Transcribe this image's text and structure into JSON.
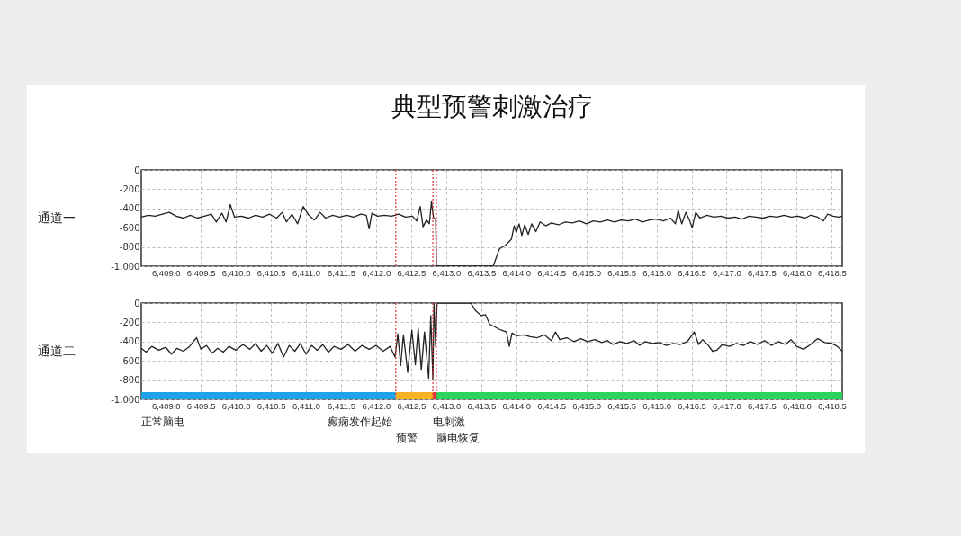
{
  "chart_data": [
    {
      "type": "line",
      "title": "典型预警刺激治疗",
      "ylabel": "通道一",
      "grid": true,
      "xlim": [
        6408.65,
        6418.65
      ],
      "ylim": [
        -1000,
        0
      ],
      "xticks": [
        {
          "value": 6409,
          "label": "6,409.0"
        },
        {
          "value": 6409.5,
          "label": "6,409.5"
        },
        {
          "value": 6410,
          "label": "6,410.0"
        },
        {
          "value": 6410.5,
          "label": "6,410.5"
        },
        {
          "value": 6411,
          "label": "6,411.0"
        },
        {
          "value": 6411.5,
          "label": "6,411.5"
        },
        {
          "value": 6412,
          "label": "6,412.0"
        },
        {
          "value": 6412.5,
          "label": "6,412.5"
        },
        {
          "value": 6413,
          "label": "6,413.0"
        },
        {
          "value": 6413.5,
          "label": "6,413.5"
        },
        {
          "value": 6414,
          "label": "6,414.0"
        },
        {
          "value": 6414.5,
          "label": "6,414.5"
        },
        {
          "value": 6415,
          "label": "6,415.0"
        },
        {
          "value": 6415.5,
          "label": "6,415.5"
        },
        {
          "value": 6416,
          "label": "6,416.0"
        },
        {
          "value": 6416.5,
          "label": "6,416.5"
        },
        {
          "value": 6417,
          "label": "6,417.0"
        },
        {
          "value": 6417.5,
          "label": "6,417.5"
        },
        {
          "value": 6418,
          "label": "6,418.0"
        },
        {
          "value": 6418.5,
          "label": "6,418.5"
        }
      ],
      "yticks": [
        0,
        -200,
        -400,
        -600,
        -800,
        {
          "value": -1000,
          "label": "-1,000"
        }
      ],
      "ref_lines": [
        {
          "axis": "x",
          "value": 6412.28,
          "color": "#e0303a",
          "line_style": "dotted"
        },
        {
          "axis": "x",
          "value": 6412.81,
          "color": "#e0303a",
          "line_style": "dotted"
        },
        {
          "axis": "x",
          "value": 6412.86,
          "color": "#e0303a",
          "line_style": "dotted"
        }
      ],
      "series": [
        {
          "color": "#222222",
          "x": [
            6408.65,
            6408.75,
            6408.85,
            6408.95,
            6409.05,
            6409.15,
            6409.25,
            6409.35,
            6409.45,
            6409.55,
            6409.65,
            6409.72,
            6409.8,
            6409.86,
            6409.92,
            6409.98,
            6410.08,
            6410.18,
            6410.28,
            6410.38,
            6410.48,
            6410.58,
            6410.66,
            6410.72,
            6410.8,
            6410.88,
            6410.96,
            6411.04,
            6411.12,
            6411.2,
            6411.28,
            6411.38,
            6411.48,
            6411.58,
            6411.68,
            6411.78,
            6411.86,
            6411.9,
            6411.94,
            6412.02,
            6412.12,
            6412.22,
            6412.32,
            6412.42,
            6412.52,
            6412.58,
            6412.63,
            6412.67,
            6412.72,
            6412.76,
            6412.79,
            6412.82,
            6412.85,
            6412.86,
            6413.67,
            6413.76,
            6413.85,
            6413.93,
            6413.97,
            6414.0,
            6414.04,
            6414.08,
            6414.12,
            6414.17,
            6414.22,
            6414.28,
            6414.34,
            6414.42,
            6414.5,
            6414.6,
            6414.7,
            6414.8,
            6414.9,
            6415.0,
            6415.1,
            6415.2,
            6415.3,
            6415.4,
            6415.5,
            6415.6,
            6415.7,
            6415.8,
            6415.9,
            6416.0,
            6416.1,
            6416.2,
            6416.27,
            6416.31,
            6416.36,
            6416.42,
            6416.47,
            6416.51,
            6416.56,
            6416.62,
            6416.72,
            6416.82,
            6416.92,
            6417.02,
            6417.12,
            6417.22,
            6417.32,
            6417.42,
            6417.52,
            6417.62,
            6417.72,
            6417.82,
            6417.92,
            6418.02,
            6418.12,
            6418.2,
            6418.3,
            6418.38,
            6418.44,
            6418.52,
            6418.6,
            6418.65
          ],
          "values": [
            -490,
            -470,
            -480,
            -460,
            -440,
            -480,
            -500,
            -470,
            -500,
            -480,
            -460,
            -540,
            -450,
            -540,
            -360,
            -490,
            -480,
            -500,
            -470,
            -490,
            -460,
            -500,
            -440,
            -540,
            -460,
            -560,
            -380,
            -470,
            -520,
            -440,
            -500,
            -470,
            -490,
            -470,
            -490,
            -460,
            -470,
            -610,
            -450,
            -480,
            -470,
            -480,
            -460,
            -490,
            -480,
            -530,
            -380,
            -590,
            -520,
            -560,
            -330,
            -500,
            -510,
            -1000,
            -1000,
            -820,
            -780,
            -720,
            -580,
            -650,
            -560,
            -680,
            -570,
            -670,
            -560,
            -640,
            -540,
            -580,
            -550,
            -570,
            -540,
            -550,
            -530,
            -560,
            -530,
            -540,
            -520,
            -540,
            -520,
            -530,
            -510,
            -540,
            -520,
            -510,
            -530,
            -500,
            -560,
            -420,
            -560,
            -440,
            -520,
            -600,
            -440,
            -500,
            -470,
            -490,
            -480,
            -500,
            -490,
            -510,
            -480,
            -490,
            -500,
            -480,
            -490,
            -470,
            -490,
            -480,
            -500,
            -470,
            -490,
            -530,
            -460,
            -480,
            -490,
            -480
          ]
        }
      ]
    },
    {
      "type": "line",
      "ylabel": "通道二",
      "grid": true,
      "xlim": [
        6408.65,
        6418.65
      ],
      "ylim": [
        -1000,
        0
      ],
      "xticks": [
        {
          "value": 6409,
          "label": "6,409.0"
        },
        {
          "value": 6409.5,
          "label": "6,409.5"
        },
        {
          "value": 6410,
          "label": "6,410.0"
        },
        {
          "value": 6410.5,
          "label": "6,410.5"
        },
        {
          "value": 6411,
          "label": "6,411.0"
        },
        {
          "value": 6411.5,
          "label": "6,411.5"
        },
        {
          "value": 6412,
          "label": "6,412.0"
        },
        {
          "value": 6412.5,
          "label": "6,412.5"
        },
        {
          "value": 6413,
          "label": "6,413.0"
        },
        {
          "value": 6413.5,
          "label": "6,413.5"
        },
        {
          "value": 6414,
          "label": "6,414.0"
        },
        {
          "value": 6414.5,
          "label": "6,414.5"
        },
        {
          "value": 6415,
          "label": "6,415.0"
        },
        {
          "value": 6415.5,
          "label": "6,415.5"
        },
        {
          "value": 6416,
          "label": "6,416.0"
        },
        {
          "value": 6416.5,
          "label": "6,416.5"
        },
        {
          "value": 6417,
          "label": "6,417.0"
        },
        {
          "value": 6417.5,
          "label": "6,417.5"
        },
        {
          "value": 6418,
          "label": "6,418.0"
        },
        {
          "value": 6418.5,
          "label": "6,418.5"
        }
      ],
      "yticks": [
        0,
        -200,
        -400,
        -600,
        -800,
        {
          "value": -1000,
          "label": "-1,000"
        }
      ],
      "ref_lines": [
        {
          "axis": "x",
          "value": 6412.28,
          "color": "#e0303a",
          "line_style": "dotted",
          "label": "癫痫发作起始"
        },
        {
          "axis": "x",
          "value": 6412.81,
          "color": "#e0303a",
          "line_style": "dotted"
        },
        {
          "axis": "x",
          "value": 6412.86,
          "color": "#e0303a",
          "line_style": "dotted"
        }
      ],
      "bands": [
        {
          "axis": "x",
          "from": 6408.65,
          "to": 6412.28,
          "label": "正常脑电",
          "color": "#1fa3e8"
        },
        {
          "axis": "x",
          "from": 6412.28,
          "to": 6412.81,
          "label": "预警",
          "color": "#f5b325"
        },
        {
          "axis": "x",
          "from": 6412.81,
          "to": 6412.86,
          "label": "电刺激",
          "color": "#e8303a"
        },
        {
          "axis": "x",
          "from": 6412.86,
          "to": 6418.65,
          "label": "脑电恢复",
          "color": "#2dd45c"
        }
      ],
      "series": [
        {
          "color": "#222222",
          "x": [
            6408.65,
            6408.72,
            6408.8,
            6408.9,
            6409.0,
            6409.08,
            6409.16,
            6409.25,
            6409.34,
            6409.44,
            6409.5,
            6409.58,
            6409.66,
            6409.74,
            6409.82,
            6409.9,
            6410.0,
            6410.1,
            6410.2,
            6410.28,
            6410.36,
            6410.44,
            6410.52,
            6410.6,
            6410.68,
            6410.76,
            6410.84,
            6410.92,
            6411.0,
            6411.08,
            6411.16,
            6411.24,
            6411.32,
            6411.4,
            6411.5,
            6411.6,
            6411.7,
            6411.8,
            6411.9,
            6412.0,
            6412.1,
            6412.2,
            6412.27,
            6412.31,
            6412.35,
            6412.39,
            6412.45,
            6412.51,
            6412.56,
            6412.6,
            6412.645,
            6412.69,
            6412.75,
            6412.78,
            6412.81,
            6412.825,
            6412.85,
            6412.87,
            6413.35,
            6413.42,
            6413.5,
            6413.56,
            6413.62,
            6413.7,
            6413.78,
            6413.86,
            6413.9,
            6413.94,
            6414.0,
            6414.1,
            6414.2,
            6414.3,
            6414.4,
            6414.5,
            6414.56,
            6414.62,
            6414.72,
            6414.82,
            6414.92,
            6415.02,
            6415.12,
            6415.22,
            6415.3,
            6415.38,
            6415.48,
            6415.58,
            6415.68,
            6415.76,
            6415.84,
            6415.94,
            6416.04,
            6416.14,
            6416.24,
            6416.34,
            6416.44,
            6416.5,
            6416.54,
            6416.6,
            6416.66,
            6416.74,
            6416.8,
            6416.86,
            6416.94,
            6417.04,
            6417.14,
            6417.24,
            6417.34,
            6417.44,
            6417.54,
            6417.64,
            6417.74,
            6417.84,
            6417.92,
            6418.0,
            6418.1,
            6418.2,
            6418.3,
            6418.4,
            6418.5,
            6418.58,
            6418.65
          ],
          "values": [
            -470,
            -510,
            -450,
            -490,
            -460,
            -530,
            -470,
            -500,
            -450,
            -360,
            -480,
            -440,
            -520,
            -470,
            -510,
            -450,
            -490,
            -430,
            -480,
            -420,
            -500,
            -440,
            -520,
            -420,
            -560,
            -440,
            -500,
            -420,
            -530,
            -440,
            -490,
            -430,
            -510,
            -450,
            -480,
            -430,
            -500,
            -440,
            -480,
            -440,
            -500,
            -450,
            -560,
            -320,
            -650,
            -330,
            -720,
            -280,
            -640,
            -260,
            -690,
            -300,
            -780,
            -130,
            -800,
            0,
            -450,
            0,
            0,
            -80,
            -130,
            -120,
            -220,
            -250,
            -280,
            -300,
            -450,
            -310,
            -340,
            -330,
            -350,
            -360,
            -330,
            -390,
            -300,
            -380,
            -360,
            -400,
            -370,
            -400,
            -380,
            -410,
            -390,
            -430,
            -400,
            -420,
            -390,
            -440,
            -400,
            -420,
            -410,
            -440,
            -420,
            -430,
            -400,
            -340,
            -300,
            -430,
            -380,
            -440,
            -500,
            -490,
            -430,
            -450,
            -420,
            -440,
            -400,
            -430,
            -390,
            -440,
            -400,
            -430,
            -380,
            -450,
            -480,
            -430,
            -370,
            -410,
            -420,
            -450,
            -500
          ]
        }
      ]
    }
  ]
}
